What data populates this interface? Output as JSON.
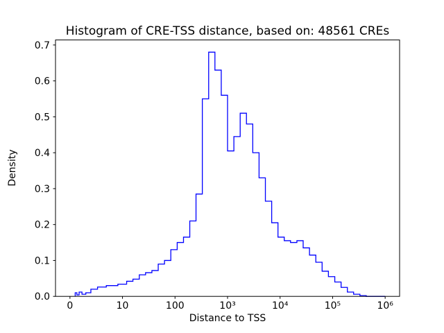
{
  "figure": {
    "background": "#ffffff"
  },
  "chart_data": {
    "type": "bar",
    "subtype": "step-histogram",
    "title": "Histogram of CRE-TSS distance, based on: 48561 CREs",
    "xlabel": "Distance to TSS",
    "ylabel": "Density",
    "sample_count": 48561,
    "line_color": "#0000ff",
    "x_scale": "symlog",
    "x_linthresh": 10,
    "xlim": [
      0,
      1000000
    ],
    "ylim": [
      0,
      0.714
    ],
    "grid": false,
    "legend": null,
    "x_ticks": [
      {
        "v": 0,
        "label": "0"
      },
      {
        "v": 10,
        "label": "10"
      },
      {
        "v": 100,
        "label": "100"
      },
      {
        "v": 1000,
        "label": "10³"
      },
      {
        "v": 10000,
        "label": "10⁴"
      },
      {
        "v": 100000,
        "label": "10⁵"
      },
      {
        "v": 1000000,
        "label": "10⁶"
      }
    ],
    "y_ticks": [
      {
        "v": 0.0,
        "label": "0.0"
      },
      {
        "v": 0.1,
        "label": "0.1"
      },
      {
        "v": 0.2,
        "label": "0.2"
      },
      {
        "v": 0.3,
        "label": "0.3"
      },
      {
        "v": 0.4,
        "label": "0.4"
      },
      {
        "v": 0.5,
        "label": "0.5"
      },
      {
        "v": 0.6,
        "label": "0.6"
      },
      {
        "v": 0.7,
        "label": "0.7"
      }
    ],
    "bin_edges": [
      1.0,
      1.32,
      1.74,
      2.29,
      3.02,
      3.98,
      5.25,
      6.92,
      9.12,
      12.0,
      15.8,
      20.9,
      27.5,
      36.3,
      47.9,
      63.1,
      83.2,
      110,
      145,
      191,
      251,
      331,
      437,
      575,
      759,
      1000,
      1320,
      1740,
      2290,
      3020,
      3980,
      5250,
      6920,
      9120,
      12000,
      15800,
      20900,
      27500,
      36300,
      47900,
      63100,
      83200,
      110000,
      145000,
      191000,
      251000,
      331000,
      437000,
      575000,
      759000,
      1000000
    ],
    "densities": [
      0.01,
      0.004,
      0.012,
      0.006,
      0.01,
      0.02,
      0.026,
      0.03,
      0.034,
      0.042,
      0.048,
      0.06,
      0.066,
      0.072,
      0.09,
      0.1,
      0.13,
      0.15,
      0.165,
      0.21,
      0.285,
      0.55,
      0.68,
      0.63,
      0.56,
      0.405,
      0.445,
      0.51,
      0.48,
      0.4,
      0.33,
      0.265,
      0.205,
      0.165,
      0.155,
      0.15,
      0.155,
      0.135,
      0.115,
      0.095,
      0.07,
      0.055,
      0.04,
      0.025,
      0.012,
      0.006,
      0.002,
      0.0,
      0.0,
      0.0
    ]
  }
}
